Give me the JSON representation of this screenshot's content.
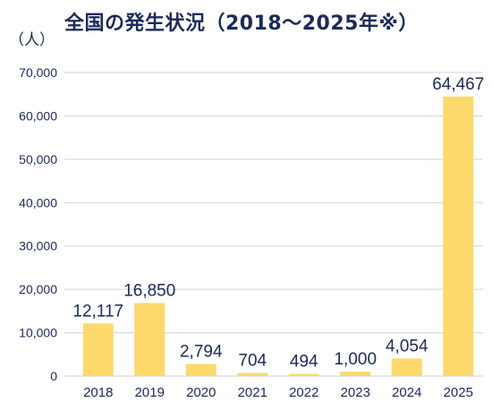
{
  "chart_data": {
    "type": "bar",
    "title": "全国の発生状況（2018～2025年※）",
    "unit_label": "（人）",
    "categories": [
      "2018",
      "2019",
      "2020",
      "2021",
      "2022",
      "2023",
      "2024",
      "2025"
    ],
    "values": [
      12117,
      16850,
      2794,
      704,
      494,
      1000,
      4054,
      64467
    ],
    "data_labels": [
      "12,117",
      "16,850",
      "2,794",
      "704",
      "494",
      "1,000",
      "4,054",
      "64,467"
    ],
    "yticks": [
      "0",
      "10,000",
      "20,000",
      "30,000",
      "40,000",
      "50,000",
      "60,000",
      "70,000"
    ],
    "ylim": [
      0,
      70000
    ],
    "grid": true,
    "bar_color": "#fcd96a",
    "grid_color": "#cfd3dc",
    "text_color": "#1b2a5b"
  }
}
